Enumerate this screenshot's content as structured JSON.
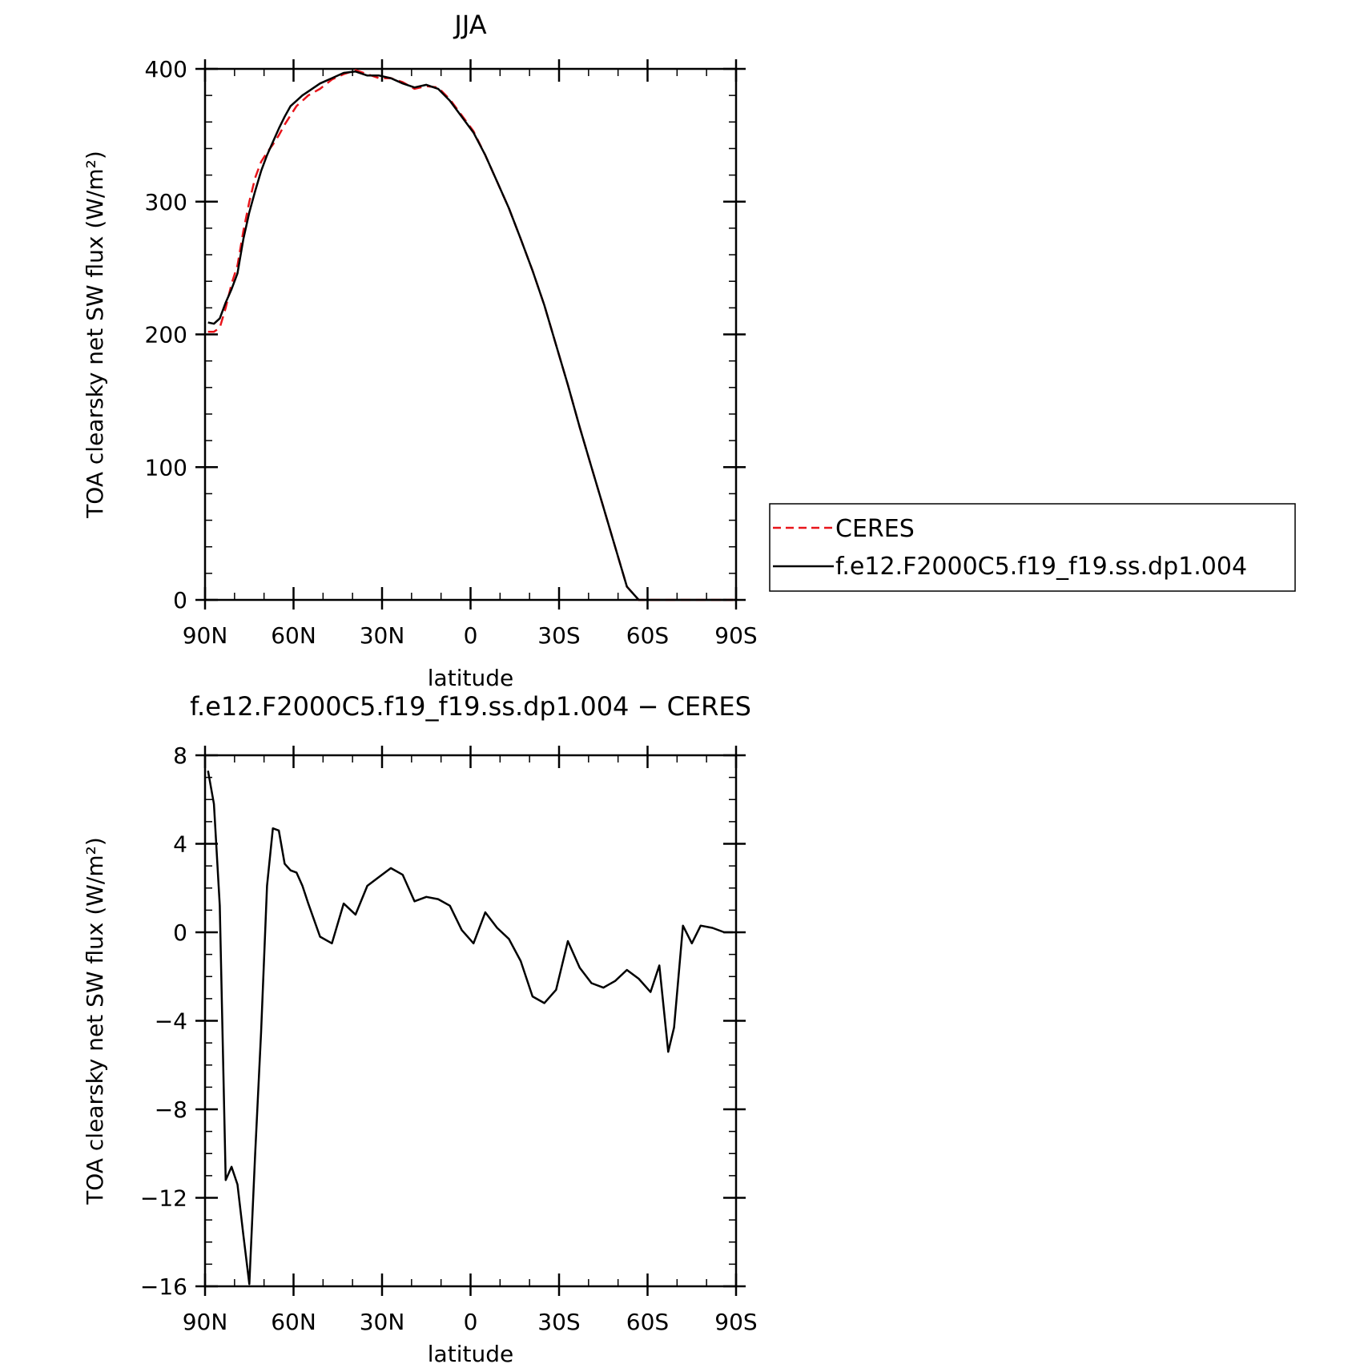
{
  "chart_data": [
    {
      "type": "line",
      "title": "JJA",
      "xlabel": "latitude",
      "ylabel": "TOA clearsky net SW flux (W/m²)",
      "xlim": [
        90,
        -90
      ],
      "ylim": [
        0,
        400
      ],
      "x_ticks": [
        {
          "value": 90,
          "label": "90N"
        },
        {
          "value": 60,
          "label": "60N"
        },
        {
          "value": 30,
          "label": "30N"
        },
        {
          "value": 0,
          "label": "0"
        },
        {
          "value": -30,
          "label": "30S"
        },
        {
          "value": -60,
          "label": "60S"
        },
        {
          "value": -90,
          "label": "90S"
        }
      ],
      "y_ticks": [
        {
          "value": 0,
          "label": "0"
        },
        {
          "value": 100,
          "label": "100"
        },
        {
          "value": 200,
          "label": "200"
        },
        {
          "value": 300,
          "label": "300"
        },
        {
          "value": 400,
          "label": "400"
        }
      ],
      "legend_position": "right",
      "series": [
        {
          "name": "CERES",
          "color": "#e8141a",
          "dash": true,
          "x": [
            89,
            87,
            85,
            83,
            81,
            79,
            77,
            75,
            73,
            71,
            69,
            67,
            65,
            63,
            61,
            59,
            57,
            55,
            51,
            47,
            43,
            39,
            35,
            31,
            27,
            23,
            19,
            15,
            11,
            7,
            3,
            -1,
            -5,
            -9,
            -13,
            -17,
            -21,
            -25,
            -29,
            -33,
            -37,
            -41,
            -45,
            -49,
            -53,
            -57,
            -61,
            -64,
            -67,
            -69,
            -72,
            -75,
            -78,
            -82,
            -86,
            -89
          ],
          "y": [
            202,
            202,
            205,
            220,
            238,
            252,
            278,
            300,
            318,
            330,
            337,
            343,
            350,
            358,
            365,
            372,
            376,
            380,
            385,
            392,
            396,
            399,
            396,
            393,
            393,
            390,
            385,
            387,
            386,
            377,
            365,
            353,
            335,
            315,
            295,
            272,
            248,
            222,
            192,
            162,
            130,
            100,
            70,
            40,
            10,
            0,
            0,
            0,
            0,
            0,
            0,
            0,
            0,
            0,
            0,
            0
          ]
        },
        {
          "name": "f.e12.F2000C5.f19_f19.ss.dp1.004",
          "color": "#000000",
          "dash": false,
          "x": [
            89,
            87,
            85,
            83,
            81,
            79,
            77,
            75,
            73,
            71,
            69,
            67,
            65,
            63,
            61,
            59,
            57,
            55,
            51,
            47,
            43,
            39,
            35,
            31,
            27,
            23,
            19,
            15,
            11,
            7,
            3,
            -1,
            -5,
            -9,
            -13,
            -17,
            -21,
            -25,
            -29,
            -33,
            -37,
            -41,
            -45,
            -49,
            -53,
            -57,
            -61,
            -64,
            -67,
            -69,
            -72,
            -75,
            -78,
            -82,
            -86,
            -89
          ],
          "y": [
            209,
            208,
            212,
            224,
            234,
            246,
            272,
            292,
            308,
            323,
            335,
            345,
            355,
            364,
            372,
            376,
            380,
            383,
            389,
            393,
            397,
            398,
            395,
            395,
            393,
            389,
            386,
            388,
            385,
            376,
            364,
            352,
            335,
            315,
            295,
            272,
            248,
            222,
            192,
            162,
            130,
            100,
            70,
            40,
            10,
            0,
            0,
            0,
            0,
            0,
            0,
            0,
            0,
            0,
            0,
            0
          ]
        }
      ]
    },
    {
      "type": "line",
      "title": "f.e12.F2000C5.f19_f19.ss.dp1.004 − CERES",
      "xlabel": "latitude",
      "ylabel": "TOA clearsky net SW flux (W/m²)",
      "xlim": [
        90,
        -90
      ],
      "ylim": [
        -16,
        8
      ],
      "x_ticks": [
        {
          "value": 90,
          "label": "90N"
        },
        {
          "value": 60,
          "label": "60N"
        },
        {
          "value": 30,
          "label": "30N"
        },
        {
          "value": 0,
          "label": "0"
        },
        {
          "value": -30,
          "label": "30S"
        },
        {
          "value": -60,
          "label": "60S"
        },
        {
          "value": -90,
          "label": "90S"
        }
      ],
      "y_ticks": [
        {
          "value": 8,
          "label": "8"
        },
        {
          "value": 4,
          "label": "4"
        },
        {
          "value": 0,
          "label": "0"
        },
        {
          "value": -4,
          "label": "−4"
        },
        {
          "value": -8,
          "label": "−8"
        },
        {
          "value": -12,
          "label": "−12"
        },
        {
          "value": -16,
          "label": "−16"
        }
      ],
      "series": [
        {
          "color": "#000000",
          "dash": false,
          "x": [
            89,
            87,
            85,
            83,
            81,
            79,
            77,
            75,
            73,
            71,
            69,
            67,
            65,
            63,
            61,
            59,
            57,
            55,
            51,
            47,
            43,
            39,
            35,
            31,
            27,
            23,
            19,
            15,
            11,
            7,
            3,
            -1,
            -5,
            -9,
            -13,
            -17,
            -21,
            -25,
            -29,
            -33,
            -37,
            -41,
            -45,
            -49,
            -53,
            -57,
            -61,
            -64,
            -67,
            -69,
            -72,
            -75,
            -78,
            -82,
            -86,
            -89
          ],
          "y": [
            7.3,
            5.8,
            1.2,
            -11.2,
            -10.6,
            -11.4,
            -13.7,
            -15.9,
            -10.0,
            -4.5,
            2.1,
            4.7,
            4.6,
            3.1,
            2.8,
            2.7,
            2.1,
            1.3,
            -0.2,
            -0.5,
            1.3,
            0.8,
            2.1,
            2.5,
            2.9,
            2.6,
            1.4,
            1.6,
            1.5,
            1.2,
            0.1,
            -0.5,
            0.9,
            0.2,
            -0.3,
            -1.3,
            -2.9,
            -3.2,
            -2.6,
            -0.4,
            -1.6,
            -2.3,
            -2.5,
            -2.2,
            -1.7,
            -2.1,
            -2.7,
            -1.5,
            -5.4,
            -4.3,
            0.3,
            -0.5,
            0.3,
            0.2,
            0.0,
            0.0
          ]
        }
      ]
    }
  ]
}
